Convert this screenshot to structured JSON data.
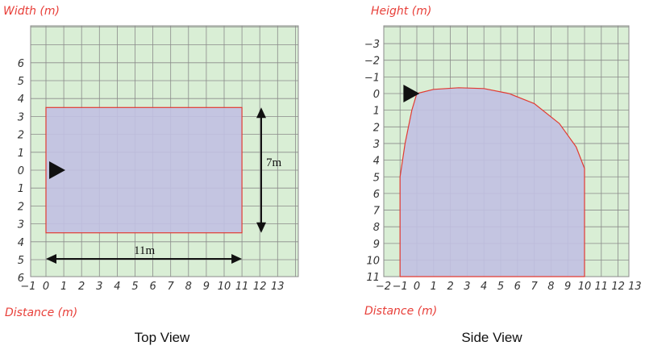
{
  "colors": {
    "grid_bg": "#d9eed5",
    "grid_line": "#8a8a8a",
    "coverage_fill": "#c1c0e2",
    "coverage_stroke": "#e23b33",
    "axis_title": "#e8403a",
    "tick_text": "#333333",
    "sensor": "#111111"
  },
  "top_view": {
    "caption": "Top View",
    "y_title": "Width (m)",
    "x_title": "Distance (m)",
    "x_ticks": [
      "−1",
      "0",
      "1",
      "2",
      "3",
      "4",
      "5",
      "6",
      "7",
      "8",
      "9",
      "10",
      "11",
      "12",
      "13"
    ],
    "y_ticks": [
      "6",
      "5",
      "4",
      "3",
      "2",
      "1",
      "0",
      "1",
      "2",
      "3",
      "4",
      "5",
      "6"
    ],
    "coverage": {
      "x_from": 0,
      "x_to": 11,
      "y_from": -3.5,
      "y_to": 3.5
    },
    "width_dimension_label": "7m",
    "length_dimension_label": "11m",
    "sensor_icon": "triangle-play-icon"
  },
  "side_view": {
    "caption": "Side View",
    "y_title": "Height (m)",
    "x_title": "Distance (m)",
    "x_ticks": [
      "−2",
      "−1",
      "0",
      "1",
      "2",
      "3",
      "4",
      "5",
      "6",
      "7",
      "8",
      "9",
      "10",
      "11",
      "12",
      "13"
    ],
    "y_ticks": [
      "−3",
      "−2",
      "−1",
      "0",
      "1",
      "2",
      "3",
      "4",
      "5",
      "6",
      "7",
      "8",
      "9",
      "10",
      "11"
    ],
    "coverage_profile": [
      [
        -1,
        11
      ],
      [
        -1,
        5
      ],
      [
        -0.7,
        3
      ],
      [
        -0.3,
        1
      ],
      [
        0,
        0
      ],
      [
        1,
        -0.25
      ],
      [
        2.5,
        -0.35
      ],
      [
        4,
        -0.3
      ],
      [
        5.5,
        0
      ],
      [
        7,
        0.6
      ],
      [
        8.5,
        1.8
      ],
      [
        9.5,
        3.2
      ],
      [
        10,
        4.5
      ],
      [
        10,
        11
      ]
    ],
    "sensor_icon": "triangle-play-icon"
  }
}
